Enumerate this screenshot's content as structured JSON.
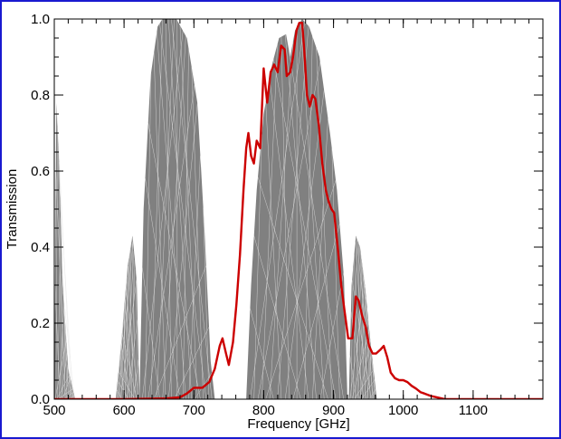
{
  "chart_data": {
    "type": "area",
    "title": "",
    "xlabel": "Frequency [GHz]",
    "ylabel": "Transmission",
    "xlim": [
      500,
      1200
    ],
    "ylim": [
      0,
      1.0
    ],
    "x_ticks": [
      500,
      600,
      700,
      800,
      900,
      1000,
      1100
    ],
    "x_tick_labels": [
      "500",
      "600",
      "700",
      "800",
      "900",
      "1000",
      "1100"
    ],
    "x_minor_step": 20,
    "y_ticks": [
      0.0,
      0.2,
      0.4,
      0.6,
      0.8,
      1.0
    ],
    "y_tick_labels": [
      "0.0",
      "0.2",
      "0.4",
      "0.6",
      "0.8",
      "1.0"
    ],
    "y_minor_step": 0.05,
    "grid": false,
    "colors": {
      "frame_border": "#1a1ad0",
      "envelope_fill": "#808080",
      "envelope_hatch": "#e6e6e6",
      "curve": "#cc0000"
    },
    "series": [
      {
        "kind": "envelope",
        "bands": [
          {
            "points": [
              [
                500,
                0.0
              ],
              [
                503,
                0.78
              ],
              [
                507,
                0.62
              ],
              [
                512,
                0.3
              ],
              [
                520,
                0.08
              ],
              [
                530,
                0.0
              ]
            ]
          },
          {
            "points": [
              [
                588,
                0.0
              ],
              [
                596,
                0.15
              ],
              [
                605,
                0.35
              ],
              [
                612,
                0.43
              ],
              [
                618,
                0.32
              ],
              [
                622,
                0.0
              ]
            ]
          },
          {
            "points": [
              [
                622,
                0.0
              ],
              [
                628,
                0.5
              ],
              [
                638,
                0.85
              ],
              [
                648,
                0.98
              ],
              [
                655,
                1.0
              ],
              [
                675,
                1.0
              ],
              [
                690,
                0.95
              ],
              [
                705,
                0.78
              ],
              [
                715,
                0.45
              ],
              [
                724,
                0.1
              ],
              [
                730,
                0.0
              ]
            ]
          },
          {
            "points": [
              [
                775,
                0.0
              ],
              [
                782,
                0.3
              ],
              [
                790,
                0.55
              ],
              [
                800,
                0.75
              ],
              [
                812,
                0.88
              ],
              [
                822,
                0.95
              ],
              [
                832,
                0.96
              ],
              [
                838,
                0.9
              ],
              [
                845,
                0.97
              ],
              [
                855,
                1.0
              ],
              [
                865,
                0.98
              ],
              [
                880,
                0.9
              ],
              [
                895,
                0.7
              ],
              [
                905,
                0.55
              ],
              [
                915,
                0.32
              ],
              [
                920,
                0.0
              ]
            ]
          },
          {
            "points": [
              [
                922,
                0.0
              ],
              [
                926,
                0.3
              ],
              [
                932,
                0.43
              ],
              [
                938,
                0.4
              ],
              [
                945,
                0.3
              ],
              [
                953,
                0.15
              ],
              [
                962,
                0.0
              ]
            ]
          }
        ]
      },
      {
        "kind": "line",
        "points": [
          [
            500,
            0.0
          ],
          [
            600,
            0.0
          ],
          [
            660,
            0.002
          ],
          [
            680,
            0.005
          ],
          [
            690,
            0.015
          ],
          [
            700,
            0.03
          ],
          [
            712,
            0.03
          ],
          [
            722,
            0.045
          ],
          [
            730,
            0.08
          ],
          [
            737,
            0.14
          ],
          [
            741,
            0.16
          ],
          [
            746,
            0.12
          ],
          [
            750,
            0.09
          ],
          [
            756,
            0.15
          ],
          [
            761,
            0.25
          ],
          [
            766,
            0.38
          ],
          [
            771,
            0.55
          ],
          [
            775,
            0.66
          ],
          [
            778,
            0.7
          ],
          [
            782,
            0.64
          ],
          [
            786,
            0.62
          ],
          [
            790,
            0.68
          ],
          [
            795,
            0.66
          ],
          [
            800,
            0.87
          ],
          [
            805,
            0.78
          ],
          [
            810,
            0.86
          ],
          [
            815,
            0.88
          ],
          [
            820,
            0.86
          ],
          [
            825,
            0.93
          ],
          [
            830,
            0.92
          ],
          [
            833,
            0.85
          ],
          [
            838,
            0.86
          ],
          [
            842,
            0.9
          ],
          [
            847,
            0.97
          ],
          [
            851,
            0.99
          ],
          [
            855,
            0.99
          ],
          [
            858,
            0.92
          ],
          [
            862,
            0.8
          ],
          [
            866,
            0.77
          ],
          [
            870,
            0.8
          ],
          [
            874,
            0.79
          ],
          [
            879,
            0.72
          ],
          [
            884,
            0.62
          ],
          [
            889,
            0.55
          ],
          [
            893,
            0.52
          ],
          [
            897,
            0.5
          ],
          [
            901,
            0.49
          ],
          [
            906,
            0.4
          ],
          [
            911,
            0.3
          ],
          [
            916,
            0.23
          ],
          [
            921,
            0.16
          ],
          [
            927,
            0.16
          ],
          [
            932,
            0.27
          ],
          [
            936,
            0.26
          ],
          [
            941,
            0.22
          ],
          [
            946,
            0.19
          ],
          [
            951,
            0.14
          ],
          [
            956,
            0.12
          ],
          [
            961,
            0.12
          ],
          [
            967,
            0.13
          ],
          [
            972,
            0.14
          ],
          [
            977,
            0.11
          ],
          [
            982,
            0.07
          ],
          [
            988,
            0.055
          ],
          [
            994,
            0.05
          ],
          [
            1000,
            0.05
          ],
          [
            1006,
            0.045
          ],
          [
            1012,
            0.035
          ],
          [
            1018,
            0.028
          ],
          [
            1025,
            0.018
          ],
          [
            1030,
            0.015
          ],
          [
            1040,
            0.008
          ],
          [
            1050,
            0.004
          ],
          [
            1060,
            0.0
          ],
          [
            1200,
            0.0
          ]
        ]
      }
    ]
  }
}
